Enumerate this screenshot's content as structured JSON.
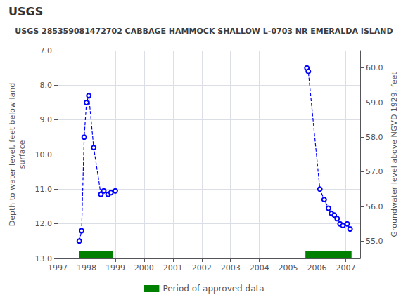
{
  "chart_data": {
    "type": "line",
    "title": "USGS 285359081472702 CABBAGE HAMMOCK SHALLOW L-0703 NR EMERALDA ISLAND",
    "annotations": [
      "USGS"
    ],
    "ylabel": "Depth to water level, feet below land\nsurface",
    "y2label": "Groundwater level above NGVD 1929, feet",
    "xlim": [
      1997,
      2007.5
    ],
    "xticks": [
      1997,
      1998,
      1999,
      2000,
      2001,
      2002,
      2003,
      2004,
      2005,
      2006,
      2007
    ],
    "ylim": [
      13.0,
      7.0
    ],
    "yticks": [
      {
        "value": 7.0,
        "label": "7.0"
      },
      {
        "value": 8.0,
        "label": "8.0"
      },
      {
        "value": 9.0,
        "label": "9.0"
      },
      {
        "value": 10.0,
        "label": "10.0"
      },
      {
        "value": 11.0,
        "label": "11.0"
      },
      {
        "value": 12.0,
        "label": "12.0"
      },
      {
        "value": 13.0,
        "label": "13.0"
      }
    ],
    "y2lim": [
      54.5,
      60.5
    ],
    "y2ticks": [
      {
        "value": 55.0,
        "label": "55.0"
      },
      {
        "value": 56.0,
        "label": "56.0"
      },
      {
        "value": 57.0,
        "label": "57.0"
      },
      {
        "value": 58.0,
        "label": "58.0"
      },
      {
        "value": 59.0,
        "label": "59.0"
      },
      {
        "value": 60.0,
        "label": "60.0"
      }
    ],
    "grid": true,
    "legend": "bottom",
    "series": [
      {
        "type": "line",
        "color": "blue",
        "marker": "hollow_circle",
        "line_style": "dashed",
        "x": [
          1997.75,
          1997.83,
          1997.92,
          1998.0,
          1998.08,
          1998.25,
          1998.5,
          1998.6,
          1998.75
        ],
        "values": [
          12.5,
          12.2,
          9.5,
          8.5,
          8.3,
          9.8,
          11.15,
          11.05,
          11.15
        ]
      },
      {
        "type": "line",
        "color": "blue",
        "marker": "hollow_circle",
        "line_style": "dashed",
        "x": [
          1998.85,
          1999.0
        ],
        "values": [
          11.1,
          11.05
        ]
      },
      {
        "type": "line",
        "color": "blue",
        "marker": "hollow_circle",
        "line_style": "dashed",
        "x": [
          2005.65,
          2005.7,
          2006.1,
          2006.25,
          2006.4,
          2006.5,
          2006.6,
          2006.7,
          2006.8,
          2006.9,
          2007.05,
          2007.15
        ],
        "values": [
          7.5,
          7.6,
          11.0,
          11.3,
          11.55,
          11.7,
          11.75,
          11.85,
          12.0,
          12.05,
          12.0,
          12.15
        ]
      },
      {
        "name": "Period of approved data",
        "type": "band",
        "color": "#008000",
        "periods": [
          [
            1997.75,
            1998.92
          ],
          [
            2005.6,
            2007.2
          ]
        ],
        "bottom": 13.0,
        "thickness": 0.22
      }
    ]
  }
}
